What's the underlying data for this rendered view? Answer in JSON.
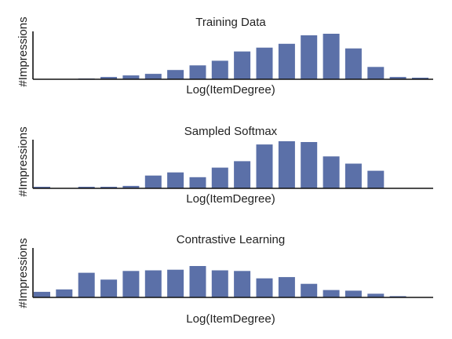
{
  "colors": {
    "bar": "#5b70a8",
    "axis": "#111111",
    "text": "#222222"
  },
  "chart_data": [
    {
      "type": "bar",
      "title": "Training Data",
      "xlabel": "Log(ItemDegree)",
      "ylabel": "#Impressions",
      "ylim": [
        0,
        60
      ],
      "grid": false,
      "values": [
        0,
        0,
        1,
        3,
        5,
        7,
        12,
        18,
        24,
        36,
        41,
        46,
        57,
        59,
        40,
        16,
        3,
        2
      ]
    },
    {
      "type": "bar",
      "title": "Sampled Softmax",
      "xlabel": "Log(ItemDegree)",
      "ylabel": "#Impressions",
      "ylim": [
        0,
        60
      ],
      "grid": false,
      "values": [
        2,
        0,
        2,
        2,
        3,
        16,
        20,
        14,
        26,
        34,
        55,
        59,
        58,
        40,
        31,
        22,
        0,
        0
      ]
    },
    {
      "type": "bar",
      "title": "Contrastive Learning",
      "xlabel": "Log(ItemDegree)",
      "ylabel": "#Impressions",
      "ylim": [
        0,
        60
      ],
      "grid": false,
      "values": [
        9,
        13,
        40,
        29,
        43,
        44,
        45,
        51,
        44,
        43,
        31,
        33,
        22,
        12,
        11,
        6,
        2,
        0
      ]
    }
  ]
}
